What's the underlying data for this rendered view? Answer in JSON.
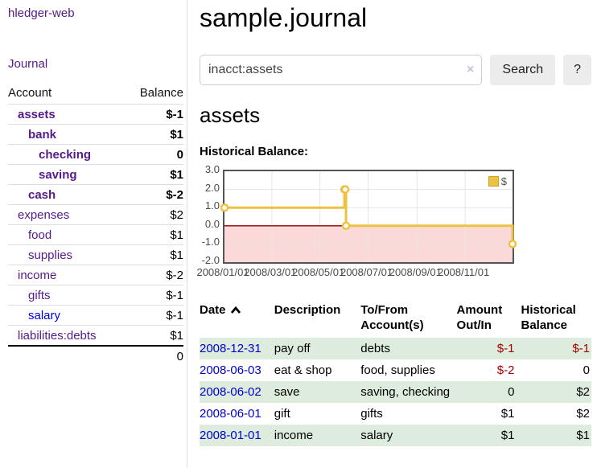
{
  "sidebar": {
    "brand": "hledger-web",
    "nav": {
      "journal": "Journal"
    },
    "accounts_table": {
      "headers": {
        "account": "Account",
        "balance": "Balance"
      },
      "rows": [
        {
          "name": "assets",
          "balance": "$-1",
          "indent": 1,
          "bold": true,
          "negative": true
        },
        {
          "name": "bank",
          "balance": "$1",
          "indent": 2,
          "bold": true,
          "negative": false
        },
        {
          "name": "checking",
          "balance": "0",
          "indent": 3,
          "bold": true,
          "negative": false
        },
        {
          "name": "saving",
          "balance": "$1",
          "indent": 3,
          "bold": true,
          "negative": false
        },
        {
          "name": "cash",
          "balance": "$-2",
          "indent": 2,
          "bold": true,
          "negative": true
        },
        {
          "name": "expenses",
          "balance": "$2",
          "indent": 1,
          "bold": false,
          "negative": false
        },
        {
          "name": "food",
          "balance": "$1",
          "indent": 2,
          "bold": false,
          "negative": false
        },
        {
          "name": "supplies",
          "balance": "$1",
          "indent": 2,
          "bold": false,
          "negative": false
        },
        {
          "name": "income",
          "balance": "$-2",
          "indent": 1,
          "bold": false,
          "negative": true
        },
        {
          "name": "gifts",
          "balance": "$-1",
          "indent": 2,
          "bold": false,
          "negative": true
        },
        {
          "name": "salary",
          "balance": "$-1",
          "indent": 2,
          "bold": false,
          "negative": true,
          "unvisited": true
        },
        {
          "name": "liabilities:debts",
          "balance": "$1",
          "indent": 1,
          "bold": false,
          "negative": false
        }
      ],
      "total": "0"
    }
  },
  "header": {
    "title": "sample.journal"
  },
  "search": {
    "value": "inacct:assets",
    "clear_icon": "×",
    "search_label": "Search",
    "help_label": "?"
  },
  "register": {
    "heading": "assets",
    "chart_label": "Historical Balance:",
    "table": {
      "headers": [
        {
          "label": "Date",
          "sorted": "ascending"
        },
        {
          "label": "Description"
        },
        {
          "label": "To/From Account(s)"
        },
        {
          "label": "Amount Out/In",
          "align": "right"
        },
        {
          "label": "Historical Balance",
          "align": "right"
        }
      ],
      "rows": [
        {
          "date": "2008-12-31",
          "description": "pay off",
          "accounts": "debts",
          "amount": "$-1",
          "balance": "$-1"
        },
        {
          "date": "2008-06-03",
          "description": "eat & shop",
          "accounts": "food, supplies",
          "amount": "$-2",
          "balance": "0"
        },
        {
          "date": "2008-06-02",
          "description": "save",
          "accounts": "saving, checking",
          "amount": "0",
          "balance": "$2"
        },
        {
          "date": "2008-06-01",
          "description": "gift",
          "accounts": "gifts",
          "amount": "$1",
          "balance": "$2"
        },
        {
          "date": "2008-01-01",
          "description": "income",
          "accounts": "salary",
          "amount": "$1",
          "balance": "$1"
        }
      ]
    }
  },
  "chart_data": {
    "type": "line",
    "title": "Historical Balance",
    "style": "steps",
    "series": [
      {
        "name": "$",
        "color": "#edc240",
        "points": [
          {
            "date": "2008-01-01",
            "day": 0,
            "value": 1
          },
          {
            "date": "2008-06-01",
            "day": 152,
            "value": 2
          },
          {
            "date": "2008-06-02",
            "day": 153,
            "value": 2
          },
          {
            "date": "2008-06-03",
            "day": 154,
            "value": 0
          },
          {
            "date": "2008-12-31",
            "day": 365,
            "value": -1
          }
        ]
      }
    ],
    "x_ticks": [
      {
        "label": "2008/01/01",
        "day": 0
      },
      {
        "label": "2008/03/01",
        "day": 60
      },
      {
        "label": "2008/05/01",
        "day": 121
      },
      {
        "label": "2008/07/01",
        "day": 182
      },
      {
        "label": "2008/09/01",
        "day": 244
      },
      {
        "label": "2008/11/01",
        "day": 305
      }
    ],
    "y_ticks": [
      {
        "label": "3.0",
        "value": 3
      },
      {
        "label": "2.0",
        "value": 2
      },
      {
        "label": "1.0",
        "value": 1
      },
      {
        "label": "0.0",
        "value": 0
      },
      {
        "label": "-1.0",
        "value": -1
      },
      {
        "label": "-2.0",
        "value": -2
      }
    ],
    "xlim_days": [
      0,
      365
    ],
    "ylim": [
      -2,
      3
    ],
    "grid": true,
    "negative_region_color": "#fbd9d9",
    "zero_line_color": "#8b0000",
    "grid_color": "#e6e6e6",
    "border_color": "#545454",
    "legend": {
      "position": "top-right",
      "label": "$",
      "swatch_color": "#edc240"
    }
  },
  "colors": {
    "visited_link_purple": "#551a8b",
    "link_blue": "#0000cc",
    "negative_dark_red": "#a40000",
    "negative_muted_red": "#c47e7e",
    "row_stripe_green": "#ddecdd",
    "button_gray": "#ececec"
  }
}
